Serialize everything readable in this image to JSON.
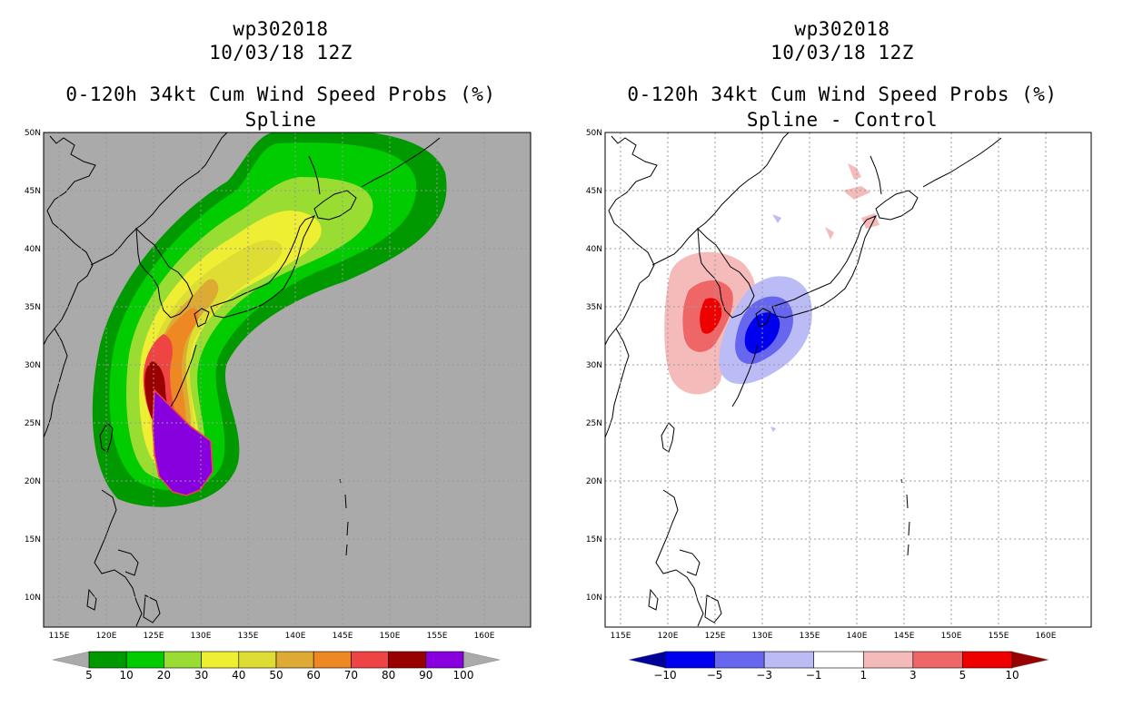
{
  "left_panel": {
    "title_lines": [
      "wp302018",
      "10/03/18 12Z",
      "0-120h 34kt Cum Wind Speed Probs (%)",
      "Spline"
    ],
    "colorbar": {
      "labels": [
        "5",
        "10",
        "20",
        "30",
        "40",
        "50",
        "60",
        "70",
        "80",
        "90",
        "100"
      ],
      "colors": [
        "#009900",
        "#00cc00",
        "#99dd33",
        "#eeee33",
        "#dddd33",
        "#ddaa33",
        "#ee8822",
        "#ee4444",
        "#990000",
        "#8800dd"
      ],
      "triangle_color": "#aaaaaa"
    }
  },
  "right_panel": {
    "title_lines": [
      "wp302018",
      "10/03/18 12Z",
      "0-120h 34kt Cum Wind Speed Probs (%)",
      "Spline - Control"
    ],
    "colorbar": {
      "labels": [
        "−10",
        "−5",
        "−3",
        "−1",
        "1",
        "3",
        "5",
        "10"
      ],
      "colors": [
        "#0000ee",
        "#6666ee",
        "#bbbbf5",
        "#ffffff",
        "#f5bbbb",
        "#ee6666",
        "#ee0000"
      ],
      "low_triangle_color": "#000099",
      "high_triangle_color": "#990000"
    }
  },
  "axes": {
    "lon_labels": [
      "115E",
      "120E",
      "125E",
      "130E",
      "135E",
      "140E",
      "145E",
      "150E",
      "155E",
      "160E"
    ],
    "lat_labels": [
      "50N",
      "45N",
      "40N",
      "35N",
      "30N",
      "25N",
      "20N",
      "15N",
      "10N"
    ]
  },
  "colors": {
    "map_background": "#aaaaaa",
    "coastline": "#000000",
    "grid": "#999999"
  }
}
